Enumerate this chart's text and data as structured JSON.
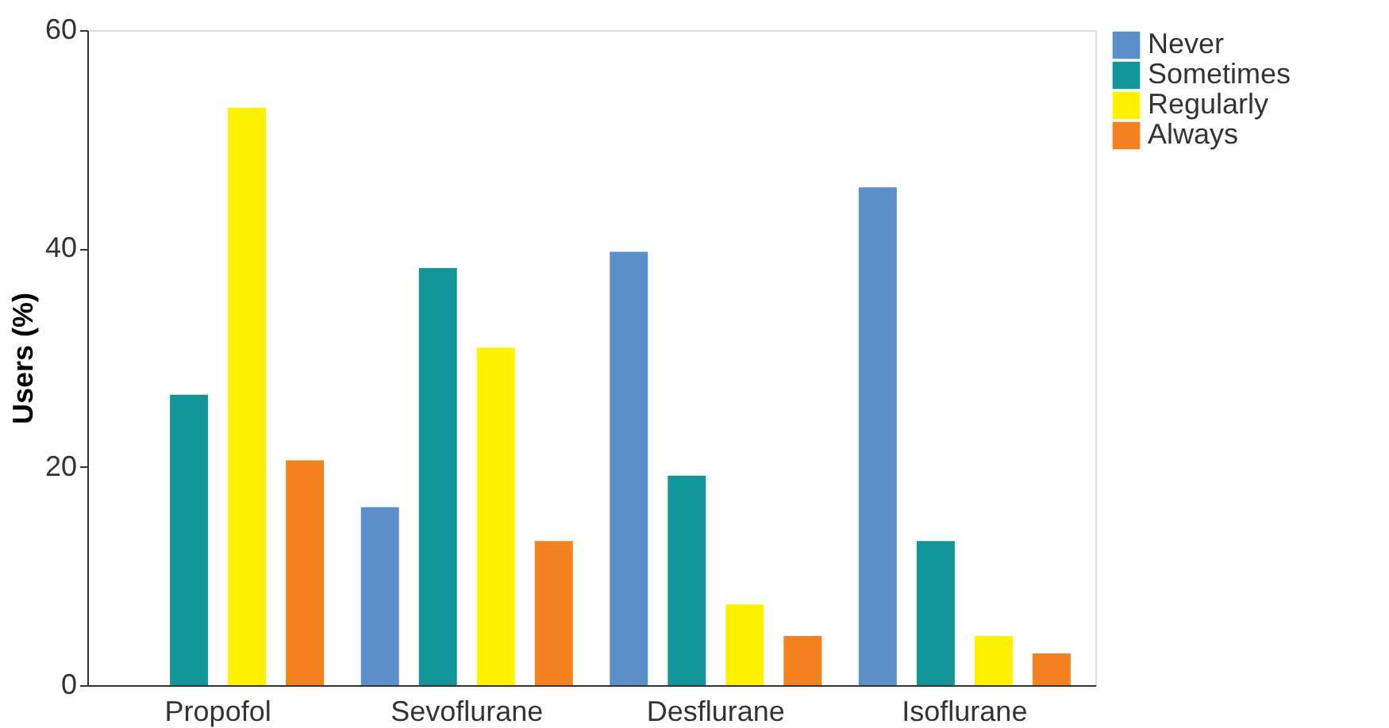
{
  "chart_data": {
    "type": "bar",
    "ylabel": "Users (%)",
    "categories": [
      "Propofol",
      "Sevoflurane",
      "Desflurane",
      "Isoflurane"
    ],
    "series": [
      {
        "name": "Never",
        "color": "#5b8fc9",
        "values": [
          0,
          16.3,
          39.7,
          45.6
        ]
      },
      {
        "name": "Sometimes",
        "color": "#13969a",
        "values": [
          26.6,
          38.2,
          19.2,
          13.2
        ]
      },
      {
        "name": "Regularly",
        "color": "#fff200",
        "values": [
          52.9,
          30.9,
          7.4,
          4.5
        ]
      },
      {
        "name": "Always",
        "color": "#f58220",
        "values": [
          20.6,
          13.2,
          4.5,
          2.9
        ]
      }
    ],
    "ylim": [
      0,
      60
    ],
    "yticks": [
      0,
      20,
      40,
      60
    ],
    "grid": false,
    "legend": "right"
  }
}
